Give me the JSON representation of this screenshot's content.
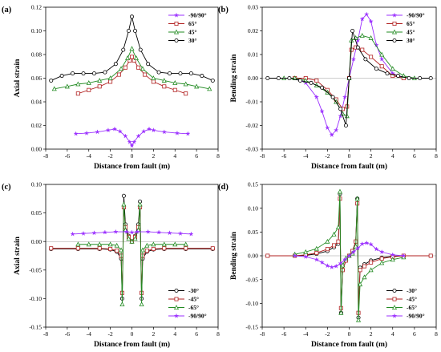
{
  "chart_data": [
    {
      "type": "line",
      "panel_label": "(a)",
      "xlabel": "Distance from fault (m)",
      "ylabel": "Axial strain",
      "xlim": [
        -8,
        8
      ],
      "ylim": [
        0,
        0.12
      ],
      "xticks": [
        -8,
        -6,
        -4,
        -2,
        0,
        2,
        4,
        6,
        8
      ],
      "yticks": [
        0.0,
        0.02,
        0.04,
        0.06,
        0.08,
        0.1,
        0.12
      ],
      "ytick_labels": [
        "0.00",
        "0.02",
        "0.04",
        "0.06",
        "0.08",
        "0.10",
        "0.12"
      ],
      "legend_position": "top-right",
      "series": [
        {
          "name": "-90/90°",
          "color": "#9b30ff",
          "marker": "star",
          "x": [
            -5.2,
            -4.2,
            -3.2,
            -2.2,
            -1.6,
            -1.1,
            -0.6,
            -0.2,
            0,
            0.2,
            0.6,
            1.1,
            1.6,
            2.0,
            3.0,
            4.2,
            5.2
          ],
          "y": [
            0.013,
            0.0135,
            0.0145,
            0.016,
            0.017,
            0.015,
            0.011,
            0.006,
            0.003,
            0.006,
            0.011,
            0.015,
            0.017,
            0.016,
            0.0145,
            0.0135,
            0.013
          ]
        },
        {
          "name": "65°",
          "color": "#b22222",
          "marker": "square",
          "x": [
            -5.0,
            -4.0,
            -3.0,
            -2.0,
            -1.2,
            -0.6,
            -0.2,
            0,
            0.2,
            0.6,
            1.2,
            2.0,
            3.0,
            4.0,
            5.0
          ],
          "y": [
            0.047,
            0.05,
            0.053,
            0.057,
            0.063,
            0.069,
            0.075,
            0.078,
            0.075,
            0.069,
            0.063,
            0.057,
            0.053,
            0.05,
            0.047
          ]
        },
        {
          "name": "45°",
          "color": "#228b22",
          "marker": "triangle",
          "x": [
            -7.2,
            -6.0,
            -5.0,
            -4.0,
            -3.0,
            -2.0,
            -1.0,
            -0.4,
            0,
            0.4,
            1.0,
            2.0,
            3.0,
            4.0,
            5.0,
            6.0,
            7.2
          ],
          "y": [
            0.051,
            0.053,
            0.055,
            0.056,
            0.058,
            0.06,
            0.068,
            0.077,
            0.085,
            0.077,
            0.068,
            0.06,
            0.058,
            0.056,
            0.055,
            0.053,
            0.051
          ]
        },
        {
          "name": "30°",
          "color": "#000000",
          "marker": "circle",
          "x": [
            -7.5,
            -6.5,
            -5.5,
            -4.5,
            -3.5,
            -2.5,
            -1.5,
            -0.8,
            -0.3,
            0,
            0.3,
            0.8,
            1.5,
            2.5,
            3.5,
            4.5,
            5.5,
            6.5,
            7.5
          ],
          "y": [
            0.058,
            0.062,
            0.064,
            0.064,
            0.064,
            0.065,
            0.072,
            0.084,
            0.1,
            0.112,
            0.1,
            0.084,
            0.072,
            0.065,
            0.064,
            0.064,
            0.064,
            0.062,
            0.058
          ]
        }
      ]
    },
    {
      "type": "line",
      "panel_label": "(b)",
      "xlabel": "Distance from fault (m)",
      "ylabel": "Bending strain",
      "xlim": [
        -8,
        8
      ],
      "ylim": [
        -0.03,
        0.03
      ],
      "xticks": [
        -8,
        -6,
        -4,
        -2,
        0,
        2,
        4,
        6,
        8
      ],
      "yticks": [
        -0.03,
        -0.02,
        -0.01,
        0.0,
        0.01,
        0.02,
        0.03
      ],
      "ytick_labels": [
        "-0.03",
        "-0.02",
        "-0.01",
        "0.00",
        "0.01",
        "0.02",
        "0.03"
      ],
      "legend_position": "top-right",
      "series": [
        {
          "name": "-90/90°",
          "color": "#9b30ff",
          "marker": "star",
          "x": [
            -5,
            -4,
            -3,
            -2.5,
            -2,
            -1.6,
            -1.2,
            -0.8,
            -0.4,
            0,
            0.4,
            0.8,
            1.2,
            1.6,
            2,
            2.5,
            3,
            4,
            5
          ],
          "y": [
            0.0,
            -0.002,
            -0.008,
            -0.014,
            -0.021,
            -0.024,
            -0.022,
            -0.016,
            -0.008,
            0.0,
            0.008,
            0.016,
            0.025,
            0.027,
            0.024,
            0.014,
            0.008,
            0.002,
            0.0
          ]
        },
        {
          "name": "65°",
          "color": "#b22222",
          "marker": "square",
          "x": [
            -5,
            -4,
            -3,
            -2,
            -1.2,
            -0.6,
            -0.2,
            0,
            0.2,
            0.6,
            1.2,
            2,
            3,
            4,
            5
          ],
          "y": [
            0.0,
            0.0,
            -0.001,
            -0.005,
            -0.009,
            -0.013,
            -0.012,
            0.0,
            0.012,
            0.013,
            0.012,
            0.009,
            0.005,
            0.001,
            0.0
          ]
        },
        {
          "name": "45°",
          "color": "#228b22",
          "marker": "triangle",
          "x": [
            -6,
            -5,
            -4,
            -3,
            -2,
            -1.2,
            -0.6,
            -0.2,
            0,
            0.2,
            0.6,
            1.2,
            2,
            3,
            4,
            5,
            6
          ],
          "y": [
            0.0,
            0.0,
            -0.001,
            -0.003,
            -0.006,
            -0.01,
            -0.015,
            -0.016,
            0.0,
            0.016,
            0.017,
            0.018,
            0.017,
            0.01,
            0.004,
            0.001,
            0.0
          ]
        },
        {
          "name": "30°",
          "color": "#000000",
          "marker": "circle",
          "x": [
            -7.5,
            -6.5,
            -5.5,
            -4.5,
            -3.5,
            -2.5,
            -1.5,
            -0.8,
            -0.3,
            0,
            0.3,
            0.8,
            1.5,
            2.5,
            3.5,
            4.5,
            5.5,
            6.5,
            7.5
          ],
          "y": [
            0.0,
            0.0,
            0.0,
            -0.001,
            -0.002,
            -0.004,
            -0.008,
            -0.013,
            -0.02,
            0.0,
            0.02,
            0.013,
            0.008,
            0.004,
            0.002,
            0.001,
            0.0,
            0.0,
            0.0
          ]
        }
      ]
    },
    {
      "type": "line",
      "panel_label": "(c)",
      "xlabel": "Distance from fault (m)",
      "ylabel": "Axial strain",
      "xlim": [
        -8,
        8
      ],
      "ylim": [
        -0.15,
        0.1
      ],
      "xticks": [
        -8,
        -6,
        -4,
        -2,
        0,
        2,
        4,
        6,
        8
      ],
      "yticks": [
        -0.15,
        -0.1,
        -0.05,
        0.0,
        0.05,
        0.1
      ],
      "ytick_labels": [
        "-0.15",
        "-0.10",
        "-0.05",
        "0.00",
        "0.05",
        "0.10"
      ],
      "legend_position": "bottom-right",
      "series": [
        {
          "name": "-30°",
          "color": "#000000",
          "marker": "circle",
          "x": [
            -7.5,
            -5,
            -3,
            -2,
            -1.4,
            -1.0,
            -0.9,
            -0.75,
            -0.6,
            -0.3,
            0,
            0.3,
            0.6,
            0.75,
            0.9,
            1.0,
            1.4,
            2,
            3,
            5,
            7.5
          ],
          "y": [
            -0.013,
            -0.013,
            -0.013,
            -0.014,
            -0.018,
            -0.03,
            -0.1,
            0.08,
            0.03,
            0.01,
            0.0,
            0.01,
            0.03,
            0.07,
            -0.1,
            -0.03,
            -0.018,
            -0.014,
            -0.013,
            -0.013,
            -0.013
          ]
        },
        {
          "name": "-45°",
          "color": "#b22222",
          "marker": "square",
          "x": [
            -7.5,
            -5,
            -3,
            -2,
            -1.4,
            -1.0,
            -0.9,
            -0.75,
            -0.6,
            -0.3,
            0,
            0.3,
            0.6,
            0.75,
            0.9,
            1.0,
            1.4,
            2,
            3,
            5,
            7.5
          ],
          "y": [
            -0.012,
            -0.012,
            -0.012,
            -0.013,
            -0.016,
            -0.025,
            -0.09,
            0.06,
            0.025,
            0.008,
            0.0,
            0.008,
            0.025,
            0.06,
            -0.09,
            -0.025,
            -0.016,
            -0.013,
            -0.012,
            -0.012,
            -0.012
          ]
        },
        {
          "name": "-65°",
          "color": "#228b22",
          "marker": "triangle",
          "x": [
            -5,
            -4,
            -3,
            -2,
            -1.4,
            -1.0,
            -0.9,
            -0.75,
            -0.6,
            -0.3,
            0,
            0.3,
            0.6,
            0.75,
            0.9,
            1.0,
            1.4,
            2,
            3,
            4,
            5
          ],
          "y": [
            -0.005,
            -0.005,
            -0.005,
            -0.005,
            -0.007,
            -0.015,
            -0.11,
            0.065,
            0.02,
            0.005,
            0.0,
            0.005,
            0.02,
            0.065,
            -0.11,
            -0.015,
            -0.007,
            -0.005,
            -0.005,
            -0.005,
            -0.005
          ]
        },
        {
          "name": "-90/90°",
          "color": "#9b30ff",
          "marker": "star",
          "x": [
            -5.5,
            -4.5,
            -3.5,
            -2.5,
            -1.5,
            -0.5,
            0,
            0.5,
            1.5,
            2.5,
            3.5,
            4.5,
            5.5
          ],
          "y": [
            0.013,
            0.014,
            0.015,
            0.016,
            0.017,
            0.017,
            0.016,
            0.017,
            0.017,
            0.016,
            0.015,
            0.014,
            0.013
          ]
        }
      ]
    },
    {
      "type": "line",
      "panel_label": "(d)",
      "xlabel": "Distance from fault (m)",
      "ylabel": "Bending strain",
      "xlim": [
        -8,
        8
      ],
      "ylim": [
        -0.15,
        0.15
      ],
      "xticks": [
        -8,
        -6,
        -4,
        -2,
        0,
        2,
        4,
        6,
        8
      ],
      "yticks": [
        -0.15,
        -0.1,
        -0.05,
        0.0,
        0.05,
        0.1,
        0.15
      ],
      "ytick_labels": [
        "-0.15",
        "-0.10",
        "-0.05",
        "0.00",
        "0.05",
        "0.10",
        "0.15"
      ],
      "legend_position": "bottom-right",
      "series": [
        {
          "name": "-30°",
          "color": "#000000",
          "marker": "circle",
          "x": [
            -7.5,
            -5,
            -4,
            -3,
            -2,
            -1.4,
            -1.0,
            -0.85,
            -0.75,
            -0.6,
            -0.3,
            0,
            0.3,
            0.6,
            0.75,
            0.85,
            1.0,
            1.4,
            2,
            3,
            4,
            5,
            7.5
          ],
          "y": [
            0.0,
            0.0,
            0.001,
            0.004,
            0.01,
            0.018,
            0.025,
            0.13,
            -0.12,
            -0.03,
            -0.01,
            0.0,
            0.01,
            0.03,
            0.12,
            -0.13,
            -0.025,
            -0.018,
            -0.01,
            -0.004,
            -0.001,
            0.0,
            0.0
          ]
        },
        {
          "name": "-45°",
          "color": "#b22222",
          "marker": "square",
          "x": [
            -7.5,
            -5,
            -4,
            -3,
            -2,
            -1.4,
            -1.0,
            -0.85,
            -0.75,
            -0.6,
            -0.3,
            0,
            0.3,
            0.6,
            0.75,
            0.85,
            1.0,
            1.4,
            2,
            3,
            4,
            5,
            7.5
          ],
          "y": [
            0.0,
            0.0,
            0.002,
            0.006,
            0.014,
            0.022,
            0.03,
            0.12,
            -0.11,
            -0.03,
            -0.01,
            0.0,
            0.01,
            0.03,
            0.11,
            -0.12,
            -0.03,
            -0.022,
            -0.014,
            -0.006,
            -0.002,
            0.0,
            0.0
          ]
        },
        {
          "name": "-65°",
          "color": "#228b22",
          "marker": "triangle",
          "x": [
            -5,
            -4,
            -3,
            -2,
            -1.4,
            -1.0,
            -0.85,
            -0.75,
            -0.6,
            -0.3,
            0,
            0.3,
            0.6,
            0.75,
            0.85,
            1.0,
            1.4,
            2,
            3,
            4,
            5
          ],
          "y": [
            0.003,
            0.008,
            0.015,
            0.03,
            0.045,
            0.06,
            0.135,
            -0.12,
            -0.02,
            -0.005,
            0.0,
            0.005,
            0.02,
            0.12,
            -0.135,
            -0.06,
            -0.045,
            -0.03,
            -0.015,
            -0.008,
            -0.003
          ]
        },
        {
          "name": "-90/90°",
          "color": "#9b30ff",
          "marker": "star",
          "x": [
            -5,
            -4,
            -3,
            -2.5,
            -2,
            -1.6,
            -1.2,
            -0.8,
            -0.4,
            0,
            0.4,
            0.8,
            1.2,
            1.6,
            2,
            2.5,
            3,
            4,
            5
          ],
          "y": [
            0.0,
            -0.002,
            -0.008,
            -0.014,
            -0.021,
            -0.024,
            -0.022,
            -0.016,
            -0.008,
            0.0,
            0.008,
            0.016,
            0.025,
            0.027,
            0.024,
            0.014,
            0.008,
            0.002,
            0.0
          ]
        }
      ]
    }
  ]
}
